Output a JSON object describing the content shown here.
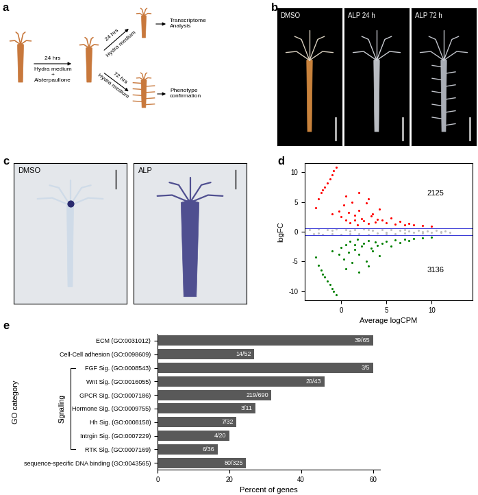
{
  "panel_labels": [
    "a",
    "b",
    "c",
    "d",
    "e"
  ],
  "diagram": {
    "steps": [
      {
        "time": "24 hrs",
        "medium": "Hydra medium\n+\nAlsterpaullone"
      },
      {
        "time": "24 hrs",
        "medium": "Hydra medium",
        "outcome": "Transcriptome\nAnalysis"
      },
      {
        "time": "72 hrs",
        "medium": "Hydra medium",
        "outcome": "Phenotype\nconfirmation"
      }
    ]
  },
  "images_b": {
    "titles": [
      "DMSO",
      "ALP 24 h",
      "ALP 72 h"
    ]
  },
  "images_c": {
    "titles": [
      "DMSO",
      "ALP"
    ]
  },
  "chart_data": [
    {
      "type": "scatter",
      "xlabel": "Average logCPM",
      "ylabel": "logFC",
      "xlim": [
        -4,
        14.5
      ],
      "ylim": [
        -11.5,
        11.5
      ],
      "xticks": [
        0,
        5,
        10
      ],
      "yticks": [
        -10,
        -5,
        0,
        5,
        10
      ],
      "thresholds": [
        0.6,
        -0.6
      ],
      "annotations": [
        "2125",
        "3136"
      ],
      "series": [
        {
          "color": "#ff0000",
          "x": [
            -2.8,
            -2.5,
            -2.2,
            -2.0,
            -1.8,
            -1.5,
            -1.2,
            -1.0,
            -0.8,
            -0.5,
            -0.2,
            0.0,
            0.3,
            0.5,
            0.8,
            1.0,
            1.2,
            1.5,
            1.8,
            2.0,
            2.3,
            2.5,
            2.8,
            3.0,
            3.3,
            3.5,
            3.8,
            4.0,
            4.5,
            5.0,
            5.5,
            6.0,
            6.5,
            7.0,
            7.5,
            8.0,
            9.0,
            10.0,
            -1.0,
            0.5,
            2.0,
            3.0,
            1.5,
            4.2
          ],
          "values": [
            4.0,
            5.5,
            6.5,
            7.0,
            7.5,
            8.2,
            8.8,
            9.5,
            10.2,
            10.8,
            3.5,
            2.5,
            4.5,
            2.0,
            3.2,
            1.5,
            5.0,
            2.8,
            1.2,
            3.6,
            2.2,
            1.8,
            4.8,
            1.4,
            2.6,
            3.0,
            1.6,
            2.1,
            1.9,
            1.5,
            2.3,
            1.3,
            1.7,
            1.2,
            1.4,
            1.1,
            1.0,
            0.9,
            3.0,
            6.0,
            6.5,
            5.5,
            2.0,
            3.8
          ]
        },
        {
          "color": "#008000",
          "x": [
            -2.8,
            -2.5,
            -2.2,
            -2.0,
            -1.8,
            -1.5,
            -1.2,
            -1.0,
            -0.8,
            -0.5,
            -0.2,
            0.0,
            0.3,
            0.5,
            0.8,
            1.0,
            1.2,
            1.5,
            1.8,
            2.0,
            2.3,
            2.5,
            2.8,
            3.0,
            3.3,
            3.5,
            3.8,
            4.0,
            4.5,
            5.0,
            5.5,
            6.0,
            6.5,
            7.0,
            7.5,
            8.0,
            9.0,
            10.0,
            -1.0,
            0.5,
            2.0,
            3.0,
            1.5,
            4.2
          ],
          "values": [
            -4.2,
            -5.6,
            -6.4,
            -7.1,
            -7.6,
            -8.3,
            -8.9,
            -9.6,
            -10.0,
            -10.6,
            -3.8,
            -2.7,
            -4.6,
            -2.2,
            -3.4,
            -1.6,
            -5.2,
            -3.0,
            -1.3,
            -3.8,
            -2.4,
            -1.9,
            -4.9,
            -1.5,
            -2.8,
            -3.2,
            -1.7,
            -2.3,
            -2.0,
            -1.6,
            -2.4,
            -1.4,
            -1.8,
            -1.3,
            -1.5,
            -1.2,
            -1.0,
            -0.9,
            -3.2,
            -6.2,
            -6.8,
            -5.8,
            -2.2,
            -4.0
          ]
        },
        {
          "color": "#bfbfbf",
          "x": [
            -3.5,
            -3.0,
            -2.5,
            -2.0,
            -1.5,
            -1.0,
            -0.5,
            0,
            0.5,
            1,
            1.5,
            2,
            2.5,
            3,
            3.5,
            4,
            4.5,
            5,
            5.5,
            6,
            6.5,
            7,
            7.5,
            8,
            8.5,
            9,
            9.5,
            10,
            10.5,
            11,
            11.5,
            12,
            -2.5,
            -1,
            1,
            3,
            5,
            7,
            9,
            11
          ],
          "values": [
            0.3,
            -0.4,
            0.5,
            -0.5,
            0.4,
            -0.3,
            0.5,
            -0.5,
            0.4,
            -0.4,
            0.3,
            -0.3,
            0.5,
            -0.5,
            0.2,
            -0.2,
            0.4,
            -0.4,
            0.3,
            -0.3,
            0.2,
            -0.2,
            0.1,
            -0.1,
            0.2,
            -0.2,
            0.1,
            -0.1,
            0.2,
            0.0,
            0.1,
            -0.1,
            -0.2,
            0.2,
            0.1,
            0.3,
            -0.1,
            0.4,
            0.0,
            -0.1
          ]
        }
      ]
    },
    {
      "type": "bar",
      "orientation": "horizontal",
      "xlabel": "Percent of genes",
      "ylabel": "GO category",
      "group_label": "Signalling",
      "group_categories": [
        "FGF Sig. (GO:0008543)",
        "RTK Sig. (GO:0007169)"
      ],
      "categories": [
        "ECM (GO:0031012)",
        "Cell-Cell adhesion (GO:0098609)",
        "FGF Sig. (GO:0008543)",
        "Wnt Sig. (GO:0016055)",
        "GPCR Sig. (GO:0007186)",
        "Hormone Sig. (GO:0009755)",
        "Hh Sig. (GO:0008158)",
        "Intrgin Sig. (GO:0007229)",
        "RTK Sig. (GO:0007169)",
        "sequence-specific DNA binding (GO:0043565)"
      ],
      "values": [
        60.0,
        26.9,
        60.0,
        46.5,
        31.7,
        27.3,
        21.9,
        20.0,
        16.7,
        24.6
      ],
      "value_labels": [
        "39/65",
        "14/52",
        "3/5",
        "20/43",
        "219/690",
        "3/11",
        "7/32",
        "4/20",
        "6/36",
        "80/325"
      ],
      "data_labels": true,
      "color": "#595959",
      "xlim": [
        0,
        62
      ],
      "xticks": [
        0,
        20,
        40,
        60
      ]
    }
  ]
}
